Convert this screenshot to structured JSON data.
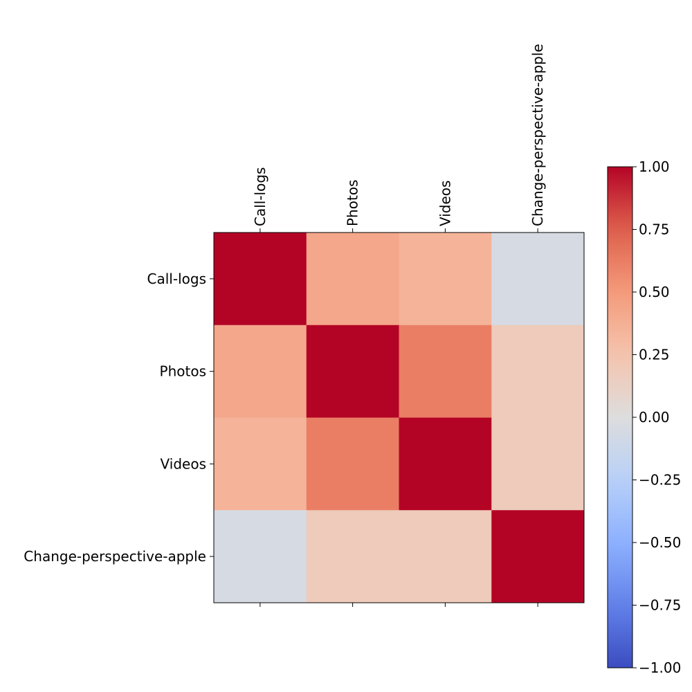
{
  "chart_data": {
    "type": "heatmap",
    "title": "",
    "xlabel": "",
    "ylabel": "",
    "x_categories": [
      "Call-logs",
      "Photos",
      "Videos",
      "Change-perspective-apple"
    ],
    "y_categories": [
      "Call-logs",
      "Photos",
      "Videos",
      "Change-perspective-apple"
    ],
    "values": [
      [
        1.0,
        0.42,
        0.35,
        -0.05
      ],
      [
        0.42,
        1.0,
        0.62,
        0.18
      ],
      [
        0.35,
        0.62,
        1.0,
        0.18
      ],
      [
        -0.05,
        0.18,
        0.18,
        1.0
      ]
    ],
    "colormap": "coolwarm",
    "x_tick_position": "top",
    "grid": false,
    "colorbar": {
      "range": [
        -1.0,
        1.0
      ],
      "position": "right",
      "tick_values": [
        1.0,
        0.75,
        0.5,
        0.25,
        0.0,
        -0.25,
        -0.5,
        -0.75,
        -1.0
      ],
      "tick_labels": [
        "1.00",
        "0.75",
        "0.50",
        "0.25",
        "0.00",
        "−0.25",
        "−0.50",
        "−0.75",
        "−1.00"
      ]
    }
  }
}
